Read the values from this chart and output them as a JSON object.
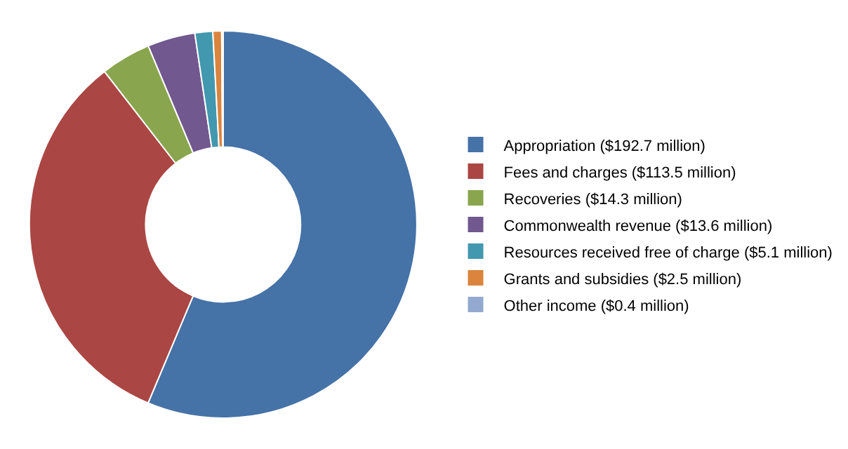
{
  "chart_data": {
    "type": "donut",
    "categories": [
      "Appropriation ($192.7 million)",
      "Fees and charges ($113.5 million)",
      "Recoveries ($14.3 million)",
      "Commonwealth revenue ($13.6 million)",
      "Resources received free of charge ($5.1 million)",
      "Grants and subsidies ($2.5 million)",
      "Other income ($0.4 million)"
    ],
    "values": [
      192.7,
      113.5,
      14.3,
      13.6,
      5.1,
      2.5,
      0.4
    ],
    "colors": [
      "#4572a7",
      "#aa4643",
      "#89a54e",
      "#71588f",
      "#4198af",
      "#db843d",
      "#93a9cf"
    ],
    "legend": "right"
  }
}
